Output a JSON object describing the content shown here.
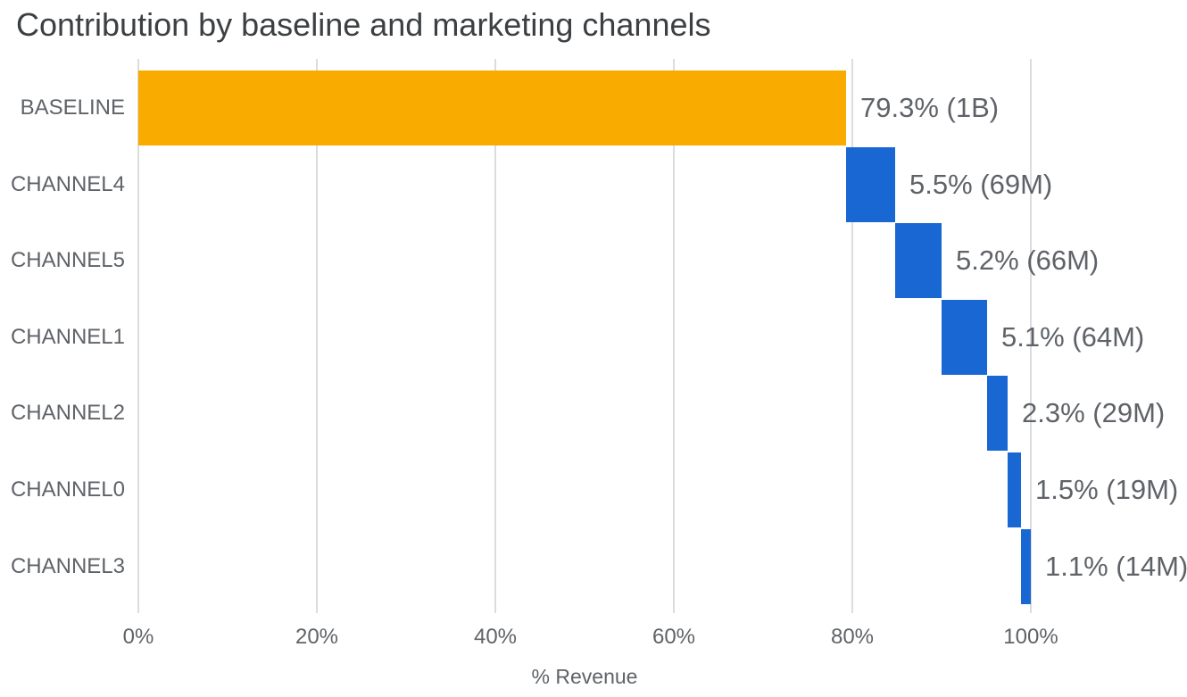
{
  "chart_data": {
    "type": "bar",
    "subtype": "horizontal-waterfall",
    "title": "Contribution by baseline and marketing channels",
    "xlabel": "% Revenue",
    "ylabel": "",
    "categories": [
      "BASELINE",
      "CHANNEL4",
      "CHANNEL5",
      "CHANNEL1",
      "CHANNEL2",
      "CHANNEL0",
      "CHANNEL3"
    ],
    "values_pct": [
      79.3,
      5.5,
      5.2,
      5.1,
      2.3,
      1.5,
      1.1
    ],
    "cumulative_start_pct": [
      0,
      79.3,
      84.8,
      90.0,
      95.1,
      97.4,
      98.9
    ],
    "value_labels": [
      "79.3% (1B)",
      "5.5% (69M)",
      "5.2% (66M)",
      "5.1% (64M)",
      "2.3% (29M)",
      "1.5% (19M)",
      "1.1% (14M)"
    ],
    "absolute_values": [
      "1B",
      "69M",
      "66M",
      "64M",
      "29M",
      "19M",
      "14M"
    ],
    "bar_colors": [
      "#F9AB00",
      "#1967D2",
      "#1967D2",
      "#1967D2",
      "#1967D2",
      "#1967D2",
      "#1967D2"
    ],
    "x_ticks": [
      {
        "value": 0,
        "label": "0%"
      },
      {
        "value": 20,
        "label": "20%"
      },
      {
        "value": 40,
        "label": "40%"
      },
      {
        "value": 60,
        "label": "60%"
      },
      {
        "value": 80,
        "label": "80%"
      },
      {
        "value": 100,
        "label": "100%"
      }
    ],
    "xlim": [
      0,
      117.5
    ],
    "grid": "vertical",
    "legend": "none",
    "colors": {
      "baseline_bar": "#F9AB00",
      "channel_bar": "#1967D2",
      "gridline": "#DADCE0",
      "title_text": "#3C4043",
      "label_text": "#5F6368",
      "background": "#FFFFFF"
    }
  }
}
